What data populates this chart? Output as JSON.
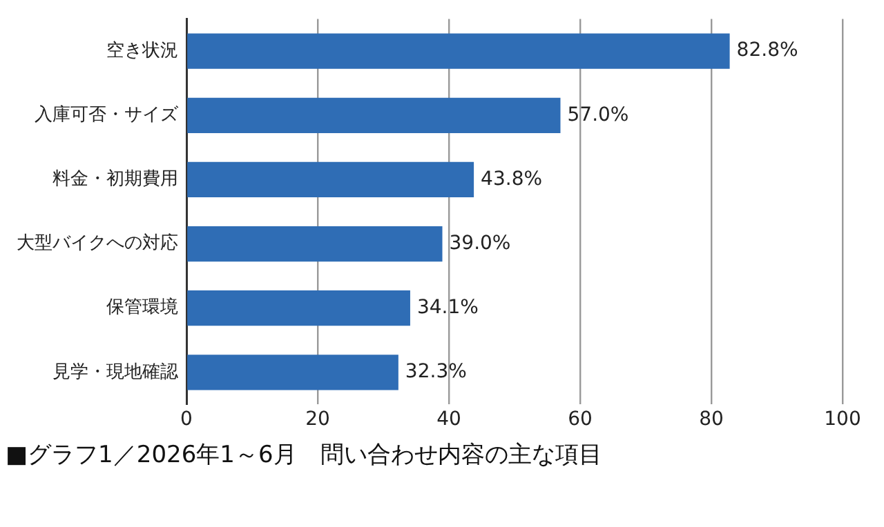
{
  "chart_data": {
    "type": "bar",
    "orientation": "horizontal",
    "title": "■グラフ1／2026年1～6月　問い合わせ内容の主な項目",
    "categories": [
      "空き状況",
      "入庫可否・サイズ",
      "料金・初期費用",
      "大型バイクへの対応",
      "保管環境",
      "見学・現地確認"
    ],
    "values": [
      82.8,
      57.0,
      43.8,
      39.0,
      34.1,
      32.3
    ],
    "value_labels": [
      "82.8%",
      "57.0%",
      "43.8%",
      "39.0%",
      "34.1%",
      "32.3%"
    ],
    "color": "#2f6db5",
    "xlim": [
      0,
      100
    ],
    "xticks": [
      0,
      20,
      40,
      60,
      80,
      100
    ],
    "grid": "x"
  }
}
